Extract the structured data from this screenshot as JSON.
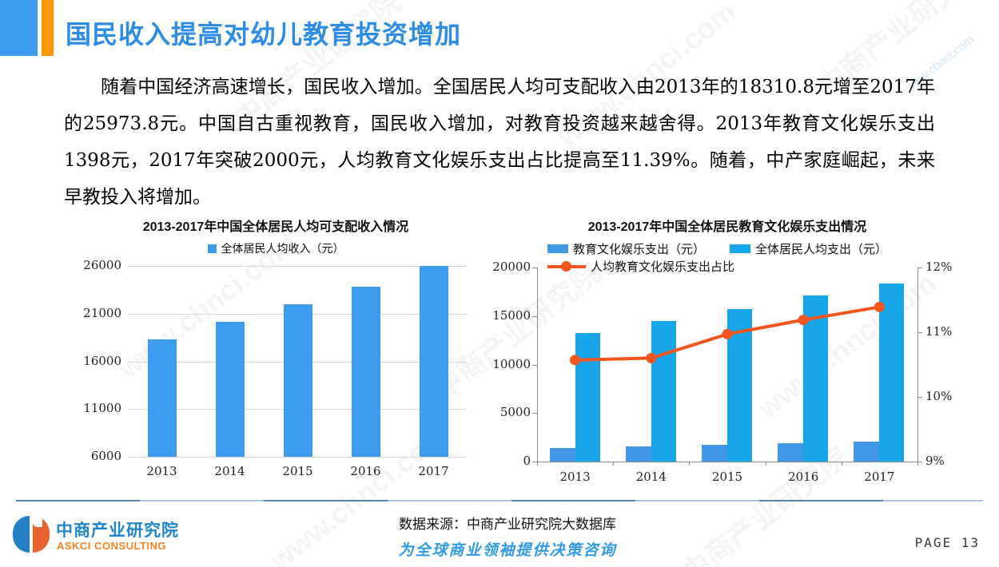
{
  "page": {
    "title": "国民收入提高对幼儿教育投资增加",
    "body_text": "随着中国经济高速增长，国民收入增加。全国居民人均可支配收入由2013年的18310.8元增至2017年的25973.8元。中国自古重视教育，国民收入增加，对教育投资越来越舍得。2013年教育文化娱乐支出1398元，2017年突破2000元，人均教育文化娱乐支出占比提高至11.39%。随着，中产家庭崛起，未来早教投入将增加。",
    "page_number": "PAGE 13"
  },
  "footer": {
    "source": "数据来源：中商产业研究院大数据库",
    "slogan": "为全球商业领袖提供决策咨询",
    "logo_cn": "中商产业研究院",
    "logo_en": "ASKCI CONSULTING"
  },
  "watermark": {
    "text_cn": "中商产业研究院",
    "text_url": "www.chnci.com"
  },
  "colors": {
    "accent_blue": "#2D8DE4",
    "accent_orange": "#FF9800",
    "income_bar_blue": "#3E9CEE",
    "edu_bar_blue": "#4297E7",
    "total_bar_cyan": "#17A6EA",
    "ratio_line_orange": "#F3551C",
    "logo_blue": "#1F86CC",
    "logo_orange": "#F58220"
  },
  "chart_data": [
    {
      "type": "bar",
      "title": "2013-2017年中国全体居民人均可支配收入情况",
      "legend": [
        "全体居民人均收入（元）"
      ],
      "categories": [
        "2013",
        "2014",
        "2015",
        "2016",
        "2017"
      ],
      "values": [
        18310.8,
        20167.1,
        21966.2,
        23821.0,
        25973.8
      ],
      "ylabel": "",
      "ylim": [
        6000,
        26000
      ],
      "yticks": [
        6000,
        11000,
        16000,
        21000,
        26000
      ],
      "bar_color": "#3E9CEE",
      "grid": true,
      "legend_position": "top"
    },
    {
      "type": "bar+line",
      "title": "2013-2017年中国全体居民教育文化娱乐支出情况",
      "categories": [
        "2013",
        "2014",
        "2015",
        "2016",
        "2017"
      ],
      "series": [
        {
          "name": "教育文化娱乐支出（元）",
          "type": "bar",
          "axis": "left",
          "color": "#4297E7",
          "values": [
            1398,
            1536,
            1723,
            1915,
            2086
          ]
        },
        {
          "name": "全体居民人均支出（元）",
          "type": "bar",
          "axis": "left",
          "color": "#17A6EA",
          "values": [
            13220,
            14491,
            15712,
            17111,
            18322
          ]
        },
        {
          "name": "人均教育文化娱乐支出占比",
          "type": "line",
          "axis": "right",
          "color": "#F3551C",
          "values": [
            10.57,
            10.6,
            10.97,
            11.19,
            11.39
          ]
        }
      ],
      "left_axis": {
        "lim": [
          0,
          20000
        ],
        "ticks": [
          0,
          5000,
          10000,
          15000,
          20000
        ]
      },
      "right_axis": {
        "lim": [
          9,
          12
        ],
        "tick_labels": [
          "9%",
          "10%",
          "11%",
          "12%"
        ]
      },
      "grid": false,
      "legend_position": "top"
    }
  ]
}
